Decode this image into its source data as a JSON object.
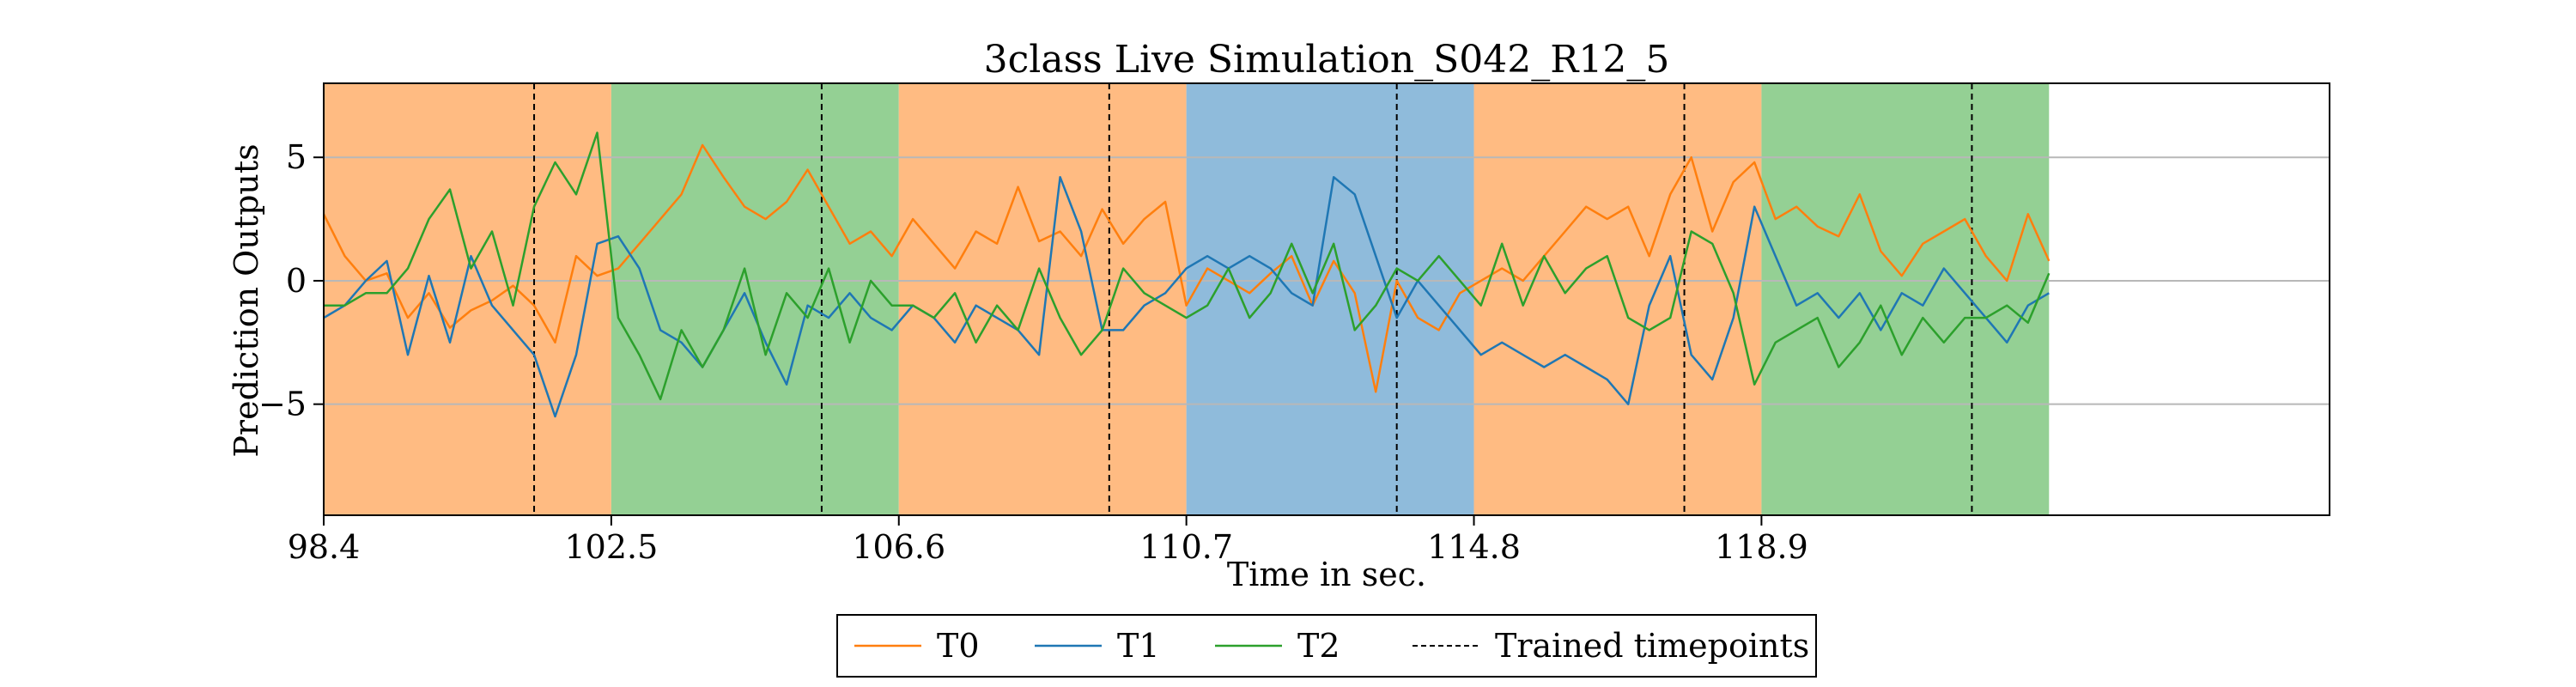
{
  "chart_data": {
    "type": "line",
    "title": "3class Live Simulation_S042_R12_5",
    "xlabel": "Time in sec.",
    "ylabel": "Prediction Outputs",
    "xlim": [
      98.4,
      127.0
    ],
    "ylim": [
      -9.5,
      8.0
    ],
    "x_ticks": [
      98.4,
      102.5,
      106.6,
      110.7,
      114.8,
      118.9
    ],
    "x_tick_labels": [
      "98.4",
      "102.5",
      "106.6",
      "110.7",
      "114.8",
      "118.9"
    ],
    "y_ticks": [
      -5,
      0,
      5
    ],
    "y_tick_labels": [
      "−5",
      "0",
      "5"
    ],
    "grid": "horizontal",
    "background_segments": [
      {
        "start": 98.4,
        "end": 102.5,
        "class": "T0",
        "color": "#ffbb82"
      },
      {
        "start": 102.5,
        "end": 106.6,
        "class": "T2",
        "color": "#94d094"
      },
      {
        "start": 106.6,
        "end": 110.7,
        "class": "T0",
        "color": "#ffbb82"
      },
      {
        "start": 110.7,
        "end": 114.8,
        "class": "T1",
        "color": "#8fbbdb"
      },
      {
        "start": 114.8,
        "end": 118.9,
        "class": "T0",
        "color": "#ffbb82"
      },
      {
        "start": 118.9,
        "end": 123.0,
        "class": "T2",
        "color": "#94d094"
      }
    ],
    "trained_timepoints": [
      101.4,
      105.5,
      109.6,
      113.7,
      117.8,
      121.9
    ],
    "series": [
      {
        "name": "T0",
        "color": "#ff7f0e",
        "x": [
          98.4,
          98.7,
          99.0,
          99.3,
          99.6,
          99.9,
          100.2,
          100.5,
          100.8,
          101.1,
          101.4,
          101.7,
          102.0,
          102.3,
          102.6,
          102.9,
          103.2,
          103.5,
          103.8,
          104.1,
          104.4,
          104.7,
          105.0,
          105.3,
          105.6,
          105.9,
          106.2,
          106.5,
          106.8,
          107.1,
          107.4,
          107.7,
          108.0,
          108.3,
          108.6,
          108.9,
          109.2,
          109.5,
          109.8,
          110.1,
          110.4,
          110.7,
          111.0,
          111.3,
          111.6,
          111.9,
          112.2,
          112.5,
          112.8,
          113.1,
          113.4,
          113.7,
          114.0,
          114.3,
          114.6,
          114.9,
          115.2,
          115.5,
          115.8,
          116.1,
          116.4,
          116.7,
          117.0,
          117.3,
          117.6,
          117.9,
          118.2,
          118.5,
          118.8,
          119.1,
          119.4,
          119.7,
          120.0,
          120.3,
          120.6,
          120.9,
          121.2,
          121.5,
          121.8,
          122.1,
          122.4,
          122.7,
          123.0
        ],
        "values": [
          2.7,
          1.0,
          0.0,
          0.3,
          -1.5,
          -0.5,
          -1.9,
          -1.2,
          -0.8,
          -0.2,
          -1.0,
          -2.5,
          1.0,
          0.2,
          0.5,
          1.5,
          2.5,
          3.5,
          5.5,
          4.2,
          3.0,
          2.5,
          3.2,
          4.5,
          3.0,
          1.5,
          2.0,
          1.0,
          2.5,
          1.5,
          0.5,
          2.0,
          1.5,
          3.8,
          1.6,
          2.0,
          1.0,
          2.9,
          1.5,
          2.5,
          3.2,
          -1.0,
          0.5,
          0.0,
          -0.5,
          0.3,
          1.0,
          -1.0,
          0.8,
          -0.5,
          -4.5,
          0.0,
          -1.5,
          -2.0,
          -0.5,
          0.0,
          0.5,
          0.0,
          1.0,
          2.0,
          3.0,
          2.5,
          3.0,
          1.0,
          3.5,
          5.0,
          2.0,
          4.0,
          4.8,
          2.5,
          3.0,
          2.2,
          1.8,
          3.5,
          1.2,
          0.2,
          1.5,
          2.0,
          2.5,
          1.0,
          0.0,
          2.7,
          0.8
        ]
      },
      {
        "name": "T1",
        "color": "#1f77b4",
        "x": [
          98.4,
          98.7,
          99.0,
          99.3,
          99.6,
          99.9,
          100.2,
          100.5,
          100.8,
          101.1,
          101.4,
          101.7,
          102.0,
          102.3,
          102.6,
          102.9,
          103.2,
          103.5,
          103.8,
          104.1,
          104.4,
          104.7,
          105.0,
          105.3,
          105.6,
          105.9,
          106.2,
          106.5,
          106.8,
          107.1,
          107.4,
          107.7,
          108.0,
          108.3,
          108.6,
          108.9,
          109.2,
          109.5,
          109.8,
          110.1,
          110.4,
          110.7,
          111.0,
          111.3,
          111.6,
          111.9,
          112.2,
          112.5,
          112.8,
          113.1,
          113.4,
          113.7,
          114.0,
          114.3,
          114.6,
          114.9,
          115.2,
          115.5,
          115.8,
          116.1,
          116.4,
          116.7,
          117.0,
          117.3,
          117.6,
          117.9,
          118.2,
          118.5,
          118.8,
          119.1,
          119.4,
          119.7,
          120.0,
          120.3,
          120.6,
          120.9,
          121.2,
          121.5,
          121.8,
          122.1,
          122.4,
          122.7,
          123.0
        ],
        "values": [
          -1.5,
          -1.0,
          0.0,
          0.8,
          -3.0,
          0.2,
          -2.5,
          1.0,
          -1.0,
          -2.0,
          -3.0,
          -5.5,
          -3.0,
          1.5,
          1.8,
          0.5,
          -2.0,
          -2.5,
          -3.5,
          -2.0,
          -0.5,
          -2.5,
          -4.2,
          -1.0,
          -1.5,
          -0.5,
          -1.5,
          -2.0,
          -1.0,
          -1.5,
          -2.5,
          -1.0,
          -1.5,
          -2.0,
          -3.0,
          4.2,
          2.0,
          -2.0,
          -2.0,
          -1.0,
          -0.5,
          0.5,
          1.0,
          0.5,
          1.0,
          0.5,
          -0.5,
          -1.0,
          4.2,
          3.5,
          1.0,
          -1.5,
          0.0,
          -1.0,
          -2.0,
          -3.0,
          -2.5,
          -3.0,
          -3.5,
          -3.0,
          -3.5,
          -4.0,
          -5.0,
          -1.0,
          1.0,
          -3.0,
          -4.0,
          -1.5,
          3.0,
          1.0,
          -1.0,
          -0.5,
          -1.5,
          -0.5,
          -2.0,
          -0.5,
          -1.0,
          0.5,
          -0.5,
          -1.5,
          -2.5,
          -1.0,
          -0.5
        ]
      },
      {
        "name": "T2",
        "color": "#2ca02c",
        "x": [
          98.4,
          98.7,
          99.0,
          99.3,
          99.6,
          99.9,
          100.2,
          100.5,
          100.8,
          101.1,
          101.4,
          101.7,
          102.0,
          102.3,
          102.6,
          102.9,
          103.2,
          103.5,
          103.8,
          104.1,
          104.4,
          104.7,
          105.0,
          105.3,
          105.6,
          105.9,
          106.2,
          106.5,
          106.8,
          107.1,
          107.4,
          107.7,
          108.0,
          108.3,
          108.6,
          108.9,
          109.2,
          109.5,
          109.8,
          110.1,
          110.4,
          110.7,
          111.0,
          111.3,
          111.6,
          111.9,
          112.2,
          112.5,
          112.8,
          113.1,
          113.4,
          113.7,
          114.0,
          114.3,
          114.6,
          114.9,
          115.2,
          115.5,
          115.8,
          116.1,
          116.4,
          116.7,
          117.0,
          117.3,
          117.6,
          117.9,
          118.2,
          118.5,
          118.8,
          119.1,
          119.4,
          119.7,
          120.0,
          120.3,
          120.6,
          120.9,
          121.2,
          121.5,
          121.8,
          122.1,
          122.4,
          122.7,
          123.0
        ],
        "values": [
          -1.0,
          -1.0,
          -0.5,
          -0.5,
          0.5,
          2.5,
          3.7,
          0.5,
          2.0,
          -1.0,
          3.0,
          4.8,
          3.5,
          6.0,
          -1.5,
          -3.0,
          -4.8,
          -2.0,
          -3.5,
          -2.0,
          0.5,
          -3.0,
          -0.5,
          -1.5,
          0.5,
          -2.5,
          0.0,
          -1.0,
          -1.0,
          -1.5,
          -0.5,
          -2.5,
          -1.0,
          -2.0,
          0.5,
          -1.5,
          -3.0,
          -2.0,
          0.5,
          -0.5,
          -1.0,
          -1.5,
          -1.0,
          0.5,
          -1.5,
          -0.5,
          1.5,
          -0.5,
          1.5,
          -2.0,
          -1.0,
          0.5,
          0.0,
          1.0,
          0.0,
          -1.0,
          1.5,
          -1.0,
          1.0,
          -0.5,
          0.5,
          1.0,
          -1.5,
          -2.0,
          -1.5,
          2.0,
          1.5,
          -0.5,
          -4.2,
          -2.5,
          -2.0,
          -1.5,
          -3.5,
          -2.5,
          -1.0,
          -3.0,
          -1.5,
          -2.5,
          -1.5,
          -1.5,
          -1.0,
          -1.7,
          0.3
        ]
      }
    ],
    "legend": {
      "placement": "bottom-center",
      "entries": [
        {
          "label": "T0",
          "style": "solid",
          "color": "#ff7f0e"
        },
        {
          "label": "T1",
          "style": "solid",
          "color": "#1f77b4"
        },
        {
          "label": "T2",
          "style": "solid",
          "color": "#2ca02c"
        },
        {
          "label": "Trained timepoints",
          "style": "dashed",
          "color": "#000000"
        }
      ]
    }
  }
}
